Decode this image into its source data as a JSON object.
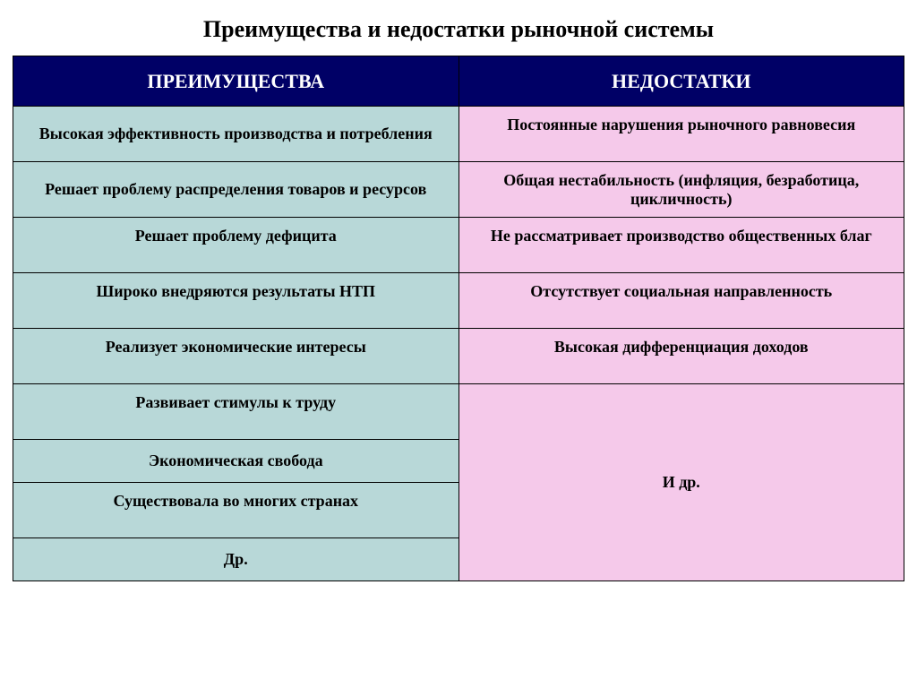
{
  "title": "Преимущества и недостатки рыночной системы",
  "table": {
    "type": "table",
    "columns": [
      "ПРЕИМУЩЕСТВА",
      "НЕДОСТАТКИ"
    ],
    "header_bg": "#000066",
    "header_fg": "#ffffff",
    "adv_bg": "#b8d8d8",
    "dis_bg": "#f5c9ea",
    "border_color": "#000000",
    "title_fontsize": 26,
    "header_fontsize": 22,
    "cell_fontsize": 18,
    "advantages": [
      "Высокая эффективность производства и потребления",
      "Решает проблему распределения товаров и ресурсов",
      "Решает проблему дефицита",
      "Широко внедряются результаты НТП",
      "Реализует экономические интересы",
      "Развивает стимулы к труду",
      "Экономическая свобода",
      "Существовала  во многих странах",
      "Др."
    ],
    "disadvantages": [
      "Постоянные нарушения рыночного равновесия",
      "Общая нестабильность (инфляция, безработица, цикличность)",
      "Не рассматривает производство общественных благ",
      "Отсутствует социальная направленность",
      "Высокая дифференциация доходов",
      "И др."
    ]
  }
}
